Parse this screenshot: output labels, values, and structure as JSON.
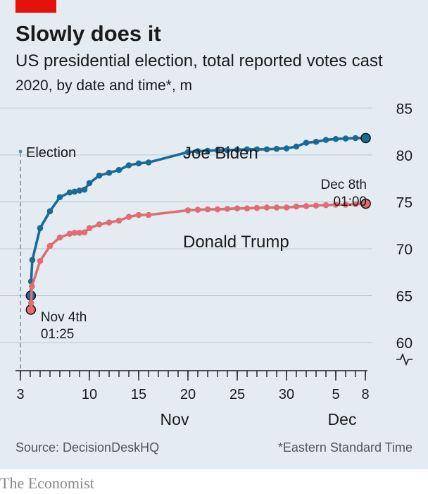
{
  "colors": {
    "background": "#e4ecf2",
    "accent_red": "#e3120b",
    "biden": "#1a6a96",
    "trump": "#e06d73",
    "grid": "#b7c6d1",
    "text": "#1a1a1a",
    "muted": "#555555"
  },
  "chart_data": {
    "type": "line",
    "title": "Slowly does it",
    "subtitle": "US presidential election, total reported votes cast",
    "subtitle2": "2020, by date and time*, m",
    "ylim": [
      57,
      86
    ],
    "yticks": [
      60,
      65,
      70,
      75,
      80,
      85
    ],
    "xlim": [
      "2020-11-03",
      "2020-12-08"
    ],
    "xticks": [
      {
        "date": "2020-11-03",
        "label": "3"
      },
      {
        "date": "2020-11-10",
        "label": "10"
      },
      {
        "date": "2020-11-15",
        "label": "15"
      },
      {
        "date": "2020-11-20",
        "label": "20"
      },
      {
        "date": "2020-11-25",
        "label": "25"
      },
      {
        "date": "2020-11-30",
        "label": "30"
      },
      {
        "date": "2020-12-05",
        "label": "5"
      },
      {
        "date": "2020-12-08",
        "label": "8"
      }
    ],
    "month_labels": [
      {
        "date": "2020-11-18",
        "label": "Nov"
      },
      {
        "date": "2020-12-05",
        "label": "Dec"
      }
    ],
    "election_marker": {
      "date": "2020-11-03",
      "label": "Election"
    },
    "series": [
      {
        "name": "Joe Biden",
        "color": "#1a6a96",
        "points": [
          [
            "2020-11-04 01:25",
            65.0
          ],
          [
            "2020-11-04 02:00",
            66.5
          ],
          [
            "2020-11-04 05:00",
            68.8
          ],
          [
            "2020-11-05 00:00",
            72.2
          ],
          [
            "2020-11-06 00:00",
            74.0
          ],
          [
            "2020-11-07 00:00",
            75.5
          ],
          [
            "2020-11-08 00:00",
            76.0
          ],
          [
            "2020-11-08 12:00",
            76.1
          ],
          [
            "2020-11-09 00:00",
            76.2
          ],
          [
            "2020-11-09 12:00",
            76.3
          ],
          [
            "2020-11-10 00:00",
            77.0
          ],
          [
            "2020-11-11 00:00",
            77.8
          ],
          [
            "2020-11-12 00:00",
            78.1
          ],
          [
            "2020-11-13 00:00",
            78.4
          ],
          [
            "2020-11-14 00:00",
            78.9
          ],
          [
            "2020-11-15 00:00",
            79.1
          ],
          [
            "2020-11-16 00:00",
            79.2
          ],
          [
            "2020-11-20 00:00",
            80.3
          ],
          [
            "2020-11-21 00:00",
            80.4
          ],
          [
            "2020-11-22 00:00",
            80.45
          ],
          [
            "2020-11-23 00:00",
            80.5
          ],
          [
            "2020-11-24 00:00",
            80.5
          ],
          [
            "2020-11-25 00:00",
            80.55
          ],
          [
            "2020-11-26 00:00",
            80.6
          ],
          [
            "2020-11-27 00:00",
            80.6
          ],
          [
            "2020-11-28 00:00",
            80.6
          ],
          [
            "2020-11-29 00:00",
            80.65
          ],
          [
            "2020-11-30 00:00",
            80.7
          ],
          [
            "2020-12-01 00:00",
            80.9
          ],
          [
            "2020-12-02 00:00",
            81.3
          ],
          [
            "2020-12-03 00:00",
            81.4
          ],
          [
            "2020-12-04 00:00",
            81.6
          ],
          [
            "2020-12-05 00:00",
            81.7
          ],
          [
            "2020-12-06 00:00",
            81.75
          ],
          [
            "2020-12-07 00:00",
            81.8
          ],
          [
            "2020-12-08 01:00",
            81.8
          ]
        ]
      },
      {
        "name": "Donald Trump",
        "color": "#e06d73",
        "points": [
          [
            "2020-11-04 01:25",
            63.5
          ],
          [
            "2020-11-04 02:00",
            64.2
          ],
          [
            "2020-11-04 04:00",
            66.0
          ],
          [
            "2020-11-05 00:00",
            68.7
          ],
          [
            "2020-11-06 00:00",
            70.3
          ],
          [
            "2020-11-07 00:00",
            71.2
          ],
          [
            "2020-11-08 00:00",
            71.6
          ],
          [
            "2020-11-08 12:00",
            71.7
          ],
          [
            "2020-11-09 00:00",
            71.7
          ],
          [
            "2020-11-09 12:00",
            71.75
          ],
          [
            "2020-11-10 00:00",
            72.2
          ],
          [
            "2020-11-11 00:00",
            72.6
          ],
          [
            "2020-11-12 00:00",
            72.8
          ],
          [
            "2020-11-13 00:00",
            73.0
          ],
          [
            "2020-11-14 00:00",
            73.4
          ],
          [
            "2020-11-15 00:00",
            73.6
          ],
          [
            "2020-11-16 00:00",
            73.6
          ],
          [
            "2020-11-20 00:00",
            74.1
          ],
          [
            "2020-11-21 00:00",
            74.15
          ],
          [
            "2020-11-22 00:00",
            74.2
          ],
          [
            "2020-11-23 00:00",
            74.2
          ],
          [
            "2020-11-24 00:00",
            74.25
          ],
          [
            "2020-11-25 00:00",
            74.3
          ],
          [
            "2020-11-26 00:00",
            74.3
          ],
          [
            "2020-11-27 00:00",
            74.35
          ],
          [
            "2020-11-28 00:00",
            74.4
          ],
          [
            "2020-11-29 00:00",
            74.4
          ],
          [
            "2020-11-30 00:00",
            74.4
          ],
          [
            "2020-12-01 00:00",
            74.5
          ],
          [
            "2020-12-02 00:00",
            74.55
          ],
          [
            "2020-12-03 00:00",
            74.6
          ],
          [
            "2020-12-04 00:00",
            74.65
          ],
          [
            "2020-12-05 00:00",
            74.7
          ],
          [
            "2020-12-06 00:00",
            74.7
          ],
          [
            "2020-12-07 00:00",
            74.75
          ],
          [
            "2020-12-08 01:00",
            74.8
          ]
        ]
      }
    ],
    "annotations": {
      "start": [
        "Nov 4th",
        "01:25"
      ],
      "end": [
        "Dec 8th",
        "01:00"
      ]
    },
    "grid": true,
    "axis_break": true
  },
  "footer": {
    "source": "Source: DecisionDeskHQ",
    "note": "*Eastern Standard Time",
    "brand": "The Economist"
  }
}
